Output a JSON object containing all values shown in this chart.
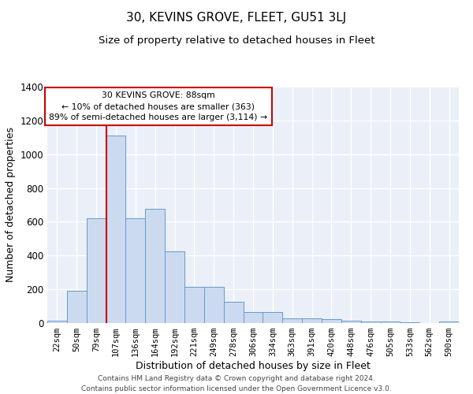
{
  "title": "30, KEVINS GROVE, FLEET, GU51 3LJ",
  "subtitle": "Size of property relative to detached houses in Fleet",
  "xlabel": "Distribution of detached houses by size in Fleet",
  "ylabel": "Number of detached properties",
  "bar_labels": [
    "22sqm",
    "50sqm",
    "79sqm",
    "107sqm",
    "136sqm",
    "164sqm",
    "192sqm",
    "221sqm",
    "249sqm",
    "278sqm",
    "306sqm",
    "334sqm",
    "363sqm",
    "391sqm",
    "420sqm",
    "448sqm",
    "476sqm",
    "505sqm",
    "533sqm",
    "562sqm",
    "590sqm"
  ],
  "bar_values": [
    15,
    190,
    620,
    1110,
    620,
    675,
    425,
    215,
    215,
    125,
    65,
    65,
    30,
    30,
    25,
    15,
    10,
    10,
    5,
    0,
    10
  ],
  "bar_color": "#ccdaf0",
  "bar_edge_color": "#6699cc",
  "vline_color": "#cc0000",
  "vline_pos": 2.5,
  "annotation_text": "30 KEVINS GROVE: 88sqm\n← 10% of detached houses are smaller (363)\n89% of semi-detached houses are larger (3,114) →",
  "annotation_box_color": "#ffffff",
  "annotation_box_edge": "#cc0000",
  "ylim": [
    0,
    1400
  ],
  "yticks": [
    0,
    200,
    400,
    600,
    800,
    1000,
    1200,
    1400
  ],
  "footer_text": "Contains HM Land Registry data © Crown copyright and database right 2024.\nContains public sector information licensed under the Open Government Licence v3.0.",
  "bg_color": "#ffffff",
  "plot_bg_color": "#eaeff8",
  "grid_color": "#ffffff",
  "title_fontsize": 11,
  "subtitle_fontsize": 9.5,
  "axis_label_fontsize": 9,
  "tick_fontsize": 7.5,
  "footer_fontsize": 6.5
}
